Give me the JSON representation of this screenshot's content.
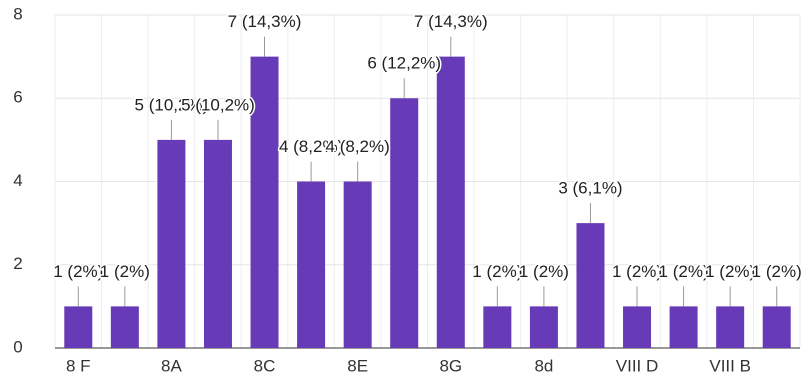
{
  "chart_data": {
    "type": "bar",
    "categories": [
      "8 F",
      null,
      "8A",
      null,
      "8C",
      null,
      "8E",
      null,
      "8G",
      null,
      "8d",
      null,
      "VIII D",
      null,
      "VIII B",
      null
    ],
    "values": [
      1,
      1,
      5,
      5,
      7,
      4,
      4,
      6,
      7,
      1,
      1,
      3,
      1,
      1,
      1,
      1
    ],
    "value_labels": [
      "1 (2%)",
      "1 (2%)",
      "5 (10,2%)",
      "5 (10,2%)",
      "7 (14,3%)",
      "4 (8,2%)",
      "4 (8,2%)",
      "6 (12,2%)",
      "7 (14,3%)",
      "1 (2%)",
      "1 (2%)",
      "3 (6,1%)",
      "1 (2%)",
      "1 (2%)",
      "1 (2%)",
      "1 (2%)"
    ],
    "color": "#673ab7",
    "ylim": [
      0,
      8
    ],
    "yticks": [
      0,
      2,
      4,
      6,
      8
    ],
    "grid": true
  }
}
